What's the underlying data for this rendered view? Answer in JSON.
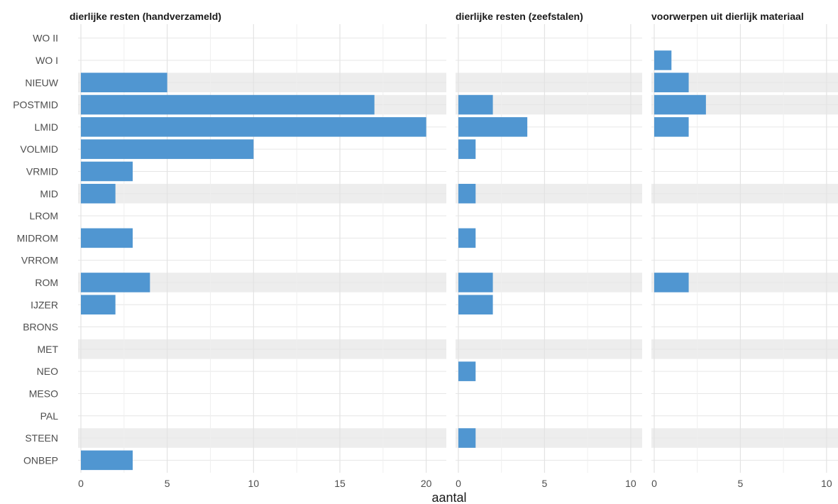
{
  "chart_data": {
    "type": "bar",
    "orientation": "horizontal",
    "faceted": true,
    "xlabel": "aantal",
    "ylabel": "",
    "categories": [
      "WO II",
      "WO I",
      "NIEUW",
      "POSTMID",
      "LMID",
      "VOLMID",
      "VRMID",
      "MID",
      "LROM",
      "MIDROM",
      "VRROM",
      "ROM",
      "IJZER",
      "BRONS",
      "MET",
      "NEO",
      "MESO",
      "PAL",
      "STEEN",
      "ONBEP"
    ],
    "shaded_categories": [
      "NIEUW",
      "POSTMID",
      "MID",
      "ROM",
      "MET",
      "STEEN"
    ],
    "bar_color": "#5096d1",
    "band_color": "#ededed",
    "grid": true,
    "panels": [
      {
        "title": "dierlijke resten (handverzameld)",
        "xlim": [
          0,
          21
        ],
        "xticks": [
          0,
          5,
          10,
          15,
          20
        ],
        "values": [
          0,
          0,
          5,
          17,
          20,
          10,
          3,
          2,
          0,
          3,
          0,
          4,
          2,
          0,
          0,
          0,
          0,
          0,
          0,
          3
        ]
      },
      {
        "title": "dierlijke resten (zeefstalen)",
        "xlim": [
          0,
          10.5
        ],
        "xticks": [
          0,
          5,
          10
        ],
        "values": [
          0,
          0,
          0,
          2,
          4,
          1,
          0,
          1,
          0,
          1,
          0,
          2,
          2,
          0,
          0,
          1,
          0,
          0,
          1,
          0
        ]
      },
      {
        "title": "voorwerpen uit dierlijk materiaal",
        "xlim": [
          0,
          10.5
        ],
        "xticks": [
          0,
          5,
          10
        ],
        "values": [
          0,
          1,
          2,
          3,
          2,
          0,
          0,
          0,
          0,
          0,
          0,
          2,
          0,
          0,
          0,
          0,
          0,
          0,
          0,
          0
        ]
      }
    ]
  }
}
